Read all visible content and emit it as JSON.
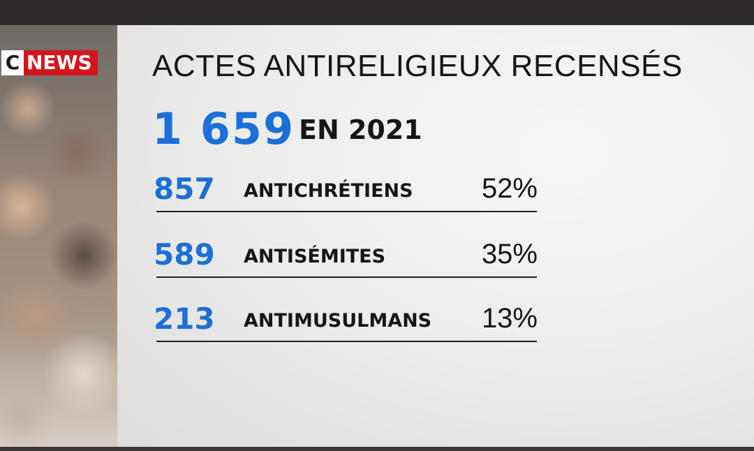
{
  "logo": {
    "c": "C",
    "news": "NEWS"
  },
  "title": "ACTES ANTIRELIGIEUX RECENSÉS",
  "total": {
    "value": "1 659",
    "label": "EN 2021"
  },
  "rows": [
    {
      "count": "857",
      "label": "ANTICHRÉTIENS",
      "percent": "52%"
    },
    {
      "count": "589",
      "label": "ANTISÉMITES",
      "percent": "35%"
    },
    {
      "count": "213",
      "label": "ANTIMUSULMANS",
      "percent": "13%"
    }
  ]
}
